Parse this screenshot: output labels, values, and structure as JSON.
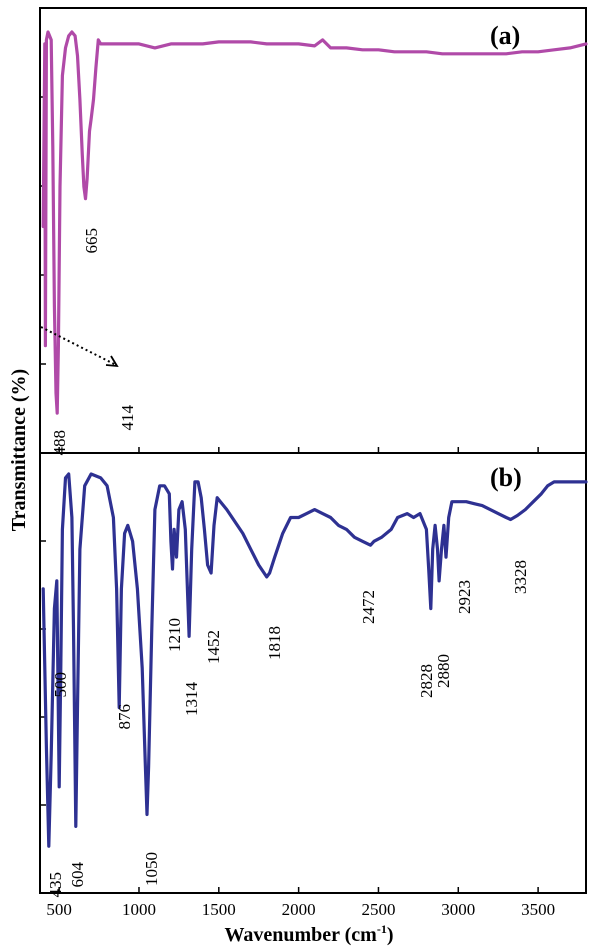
{
  "chart_data": [
    {
      "type": "line",
      "panel_label": "(a)",
      "color": "#b04aa8",
      "xlim": [
        380,
        3800
      ],
      "ylim": [
        0,
        100
      ],
      "x_ticks": [
        500,
        1000,
        1500,
        2000,
        2500,
        3000,
        3500
      ],
      "series": [
        {
          "x": [
            400,
            410,
            414,
            420,
            430,
            440,
            450,
            460,
            470,
            480,
            488,
            495,
            505,
            520,
            540,
            560,
            580,
            600,
            615,
            630,
            645,
            655,
            665,
            675,
            690,
            700,
            715,
            730,
            745,
            760,
            800,
            900,
            1000,
            1100,
            1200,
            1300,
            1400,
            1500,
            1600,
            1700,
            1800,
            1900,
            2000,
            2100,
            2150,
            2200,
            2300,
            2400,
            2500,
            2600,
            2700,
            2800,
            2900,
            3000,
            3100,
            3200,
            3300,
            3400,
            3500,
            3600,
            3700,
            3800
          ],
          "y": [
            50,
            96,
            20,
            97,
            99,
            98,
            97,
            70,
            30,
            8,
            3,
            20,
            60,
            88,
            95,
            98,
            99,
            98,
            93,
            82,
            68,
            60,
            57,
            62,
            74,
            77,
            82,
            90,
            97,
            96,
            96,
            96,
            96,
            95,
            96,
            96,
            96,
            96.5,
            96.5,
            96.5,
            96,
            96,
            96,
            95.5,
            97,
            95,
            95,
            94.5,
            94.5,
            94,
            94,
            94,
            93.5,
            93.5,
            93.5,
            93.5,
            93.5,
            94,
            94,
            94.5,
            95,
            96
          ]
        }
      ],
      "peak_labels": [
        {
          "x": 488,
          "label": "488"
        },
        {
          "x": 665,
          "label": "665"
        },
        {
          "x": 414,
          "label": "414"
        }
      ]
    },
    {
      "type": "line",
      "panel_label": "(b)",
      "color": "#2e3192",
      "xlim": [
        380,
        3800
      ],
      "ylim": [
        0,
        100
      ],
      "x_ticks": [
        500,
        1000,
        1500,
        2000,
        2500,
        3000,
        3500
      ],
      "series": [
        {
          "x": [
            400,
            420,
            435,
            450,
            470,
            485,
            500,
            510,
            520,
            540,
            560,
            580,
            590,
            604,
            615,
            630,
            660,
            700,
            760,
            800,
            840,
            860,
            876,
            890,
            910,
            930,
            960,
            990,
            1020,
            1040,
            1050,
            1060,
            1080,
            1100,
            1130,
            1160,
            1190,
            1200,
            1210,
            1220,
            1235,
            1250,
            1270,
            1290,
            1314,
            1330,
            1350,
            1370,
            1390,
            1410,
            1430,
            1452,
            1470,
            1490,
            1510,
            1550,
            1600,
            1650,
            1700,
            1750,
            1800,
            1818,
            1850,
            1900,
            1950,
            2000,
            2050,
            2100,
            2150,
            2200,
            2250,
            2300,
            2350,
            2400,
            2450,
            2472,
            2520,
            2580,
            2620,
            2680,
            2720,
            2760,
            2800,
            2815,
            2828,
            2840,
            2855,
            2870,
            2880,
            2895,
            2910,
            2923,
            2940,
            2960,
            3000,
            3050,
            3100,
            3150,
            3200,
            3250,
            3300,
            3328,
            3370,
            3420,
            3470,
            3520,
            3560,
            3600,
            3700,
            3800
          ],
          "y": [
            70,
            30,
            5,
            28,
            65,
            72,
            20,
            50,
            85,
            98,
            99,
            88,
            60,
            10,
            40,
            80,
            96,
            99,
            98,
            96,
            88,
            70,
            40,
            70,
            84,
            86,
            82,
            70,
            50,
            25,
            13,
            25,
            60,
            90,
            96,
            96,
            94,
            82,
            75,
            85,
            78,
            90,
            92,
            85,
            58,
            80,
            97,
            97,
            93,
            85,
            76,
            74,
            86,
            93,
            92,
            90,
            87,
            84,
            80,
            76,
            73,
            74,
            78,
            84,
            88,
            88,
            89,
            90,
            89,
            88,
            86,
            85,
            83,
            82,
            81,
            82,
            83,
            85,
            88,
            89,
            88,
            89,
            85,
            75,
            65,
            80,
            86,
            80,
            72,
            80,
            86,
            78,
            88,
            92,
            92,
            92,
            91.5,
            91,
            90,
            89,
            88,
            87.5,
            88.5,
            90,
            92,
            94,
            96,
            97,
            97,
            97
          ]
        }
      ],
      "peak_labels": [
        {
          "x": 435,
          "label": "435"
        },
        {
          "x": 500,
          "label": "500"
        },
        {
          "x": 604,
          "label": "604"
        },
        {
          "x": 876,
          "label": "876"
        },
        {
          "x": 1050,
          "label": "1050"
        },
        {
          "x": 1210,
          "label": "1210"
        },
        {
          "x": 1314,
          "label": "1314"
        },
        {
          "x": 1452,
          "label": "1452"
        },
        {
          "x": 1818,
          "label": "1818"
        },
        {
          "x": 2472,
          "label": "2472"
        },
        {
          "x": 2828,
          "label": "2828"
        },
        {
          "x": 2880,
          "label": "2880"
        },
        {
          "x": 2923,
          "label": "2923"
        },
        {
          "x": 3328,
          "label": "3328"
        }
      ]
    }
  ],
  "axes": {
    "xlabel": "Wavenumber (cm",
    "xlabel_sup": "-1",
    "xlabel_end": ")",
    "ylabel": "Transmittance (%)",
    "x_tick_labels": [
      "500",
      "1000",
      "1500",
      "2000",
      "2500",
      "3000",
      "3500"
    ]
  }
}
